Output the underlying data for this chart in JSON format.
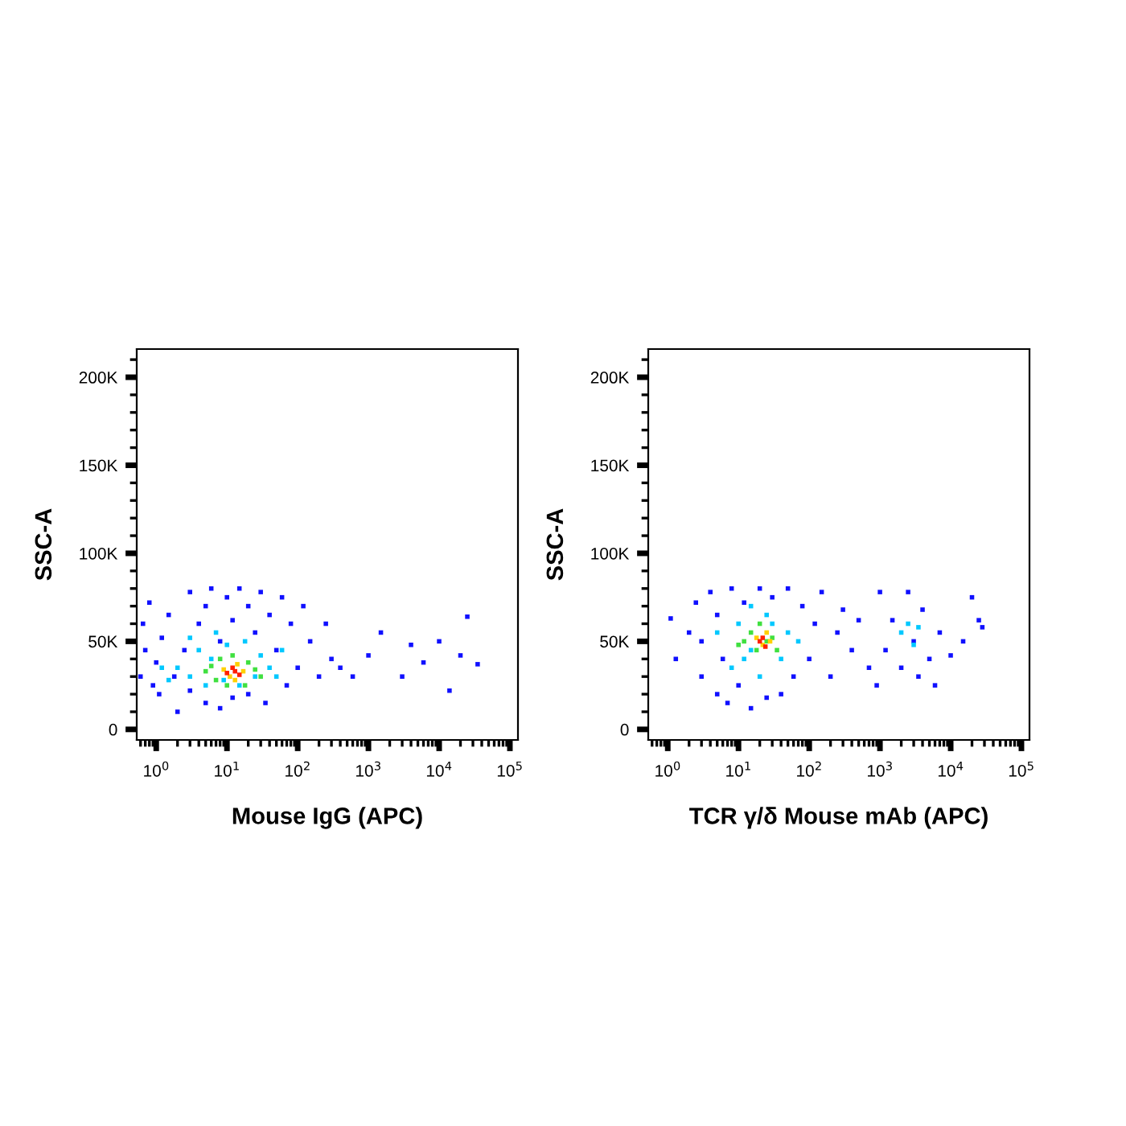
{
  "chart_data": [
    {
      "type": "scatter",
      "xlabel": "Mouse IgG (APC)",
      "ylabel": "SSC-A",
      "log": "x",
      "marker": "square",
      "grid": false,
      "legend": false,
      "xlim": [
        0.53,
        130000
      ],
      "ylim": [
        -6000,
        216000
      ],
      "xticks": [
        {
          "value": 1,
          "label": "10$^{0}$"
        },
        {
          "value": 10,
          "label": "10$^{1}$"
        },
        {
          "value": 100,
          "label": "10$^{2}$"
        },
        {
          "value": 1000,
          "label": "10$^{3}$"
        },
        {
          "value": 10000,
          "label": "10$^{4}$"
        },
        {
          "value": 100000,
          "label": "10$^{5}$"
        }
      ],
      "yticks": [
        {
          "value": 0,
          "label": "0"
        },
        {
          "value": 50000,
          "label": "50K"
        },
        {
          "value": 100000,
          "label": "100K"
        },
        {
          "value": 150000,
          "label": "150K"
        },
        {
          "value": 200000,
          "label": "200K"
        }
      ],
      "series": [
        {
          "color": "#1010ff",
          "x": [
            0.6,
            0.7,
            0.65,
            0.8,
            0.9,
            1.0,
            1.2,
            1.1,
            1.5,
            1.8,
            2,
            2.5,
            3,
            3,
            4,
            5,
            5,
            6,
            8,
            8,
            10,
            12,
            12,
            15,
            20,
            20,
            25,
            30,
            35,
            40,
            50,
            60,
            70,
            80,
            100,
            120,
            150,
            200,
            250,
            300,
            400,
            600,
            1000,
            1500,
            3000,
            4000,
            6000,
            10000,
            14000,
            20000,
            25000,
            35000
          ],
          "values": [
            30000,
            45000,
            60000,
            72000,
            25000,
            38000,
            52000,
            20000,
            65000,
            30000,
            10000,
            45000,
            78000,
            22000,
            60000,
            15000,
            70000,
            80000,
            50000,
            12000,
            75000,
            62000,
            18000,
            80000,
            70000,
            20000,
            55000,
            78000,
            15000,
            65000,
            45000,
            75000,
            25000,
            60000,
            35000,
            70000,
            50000,
            30000,
            60000,
            40000,
            35000,
            30000,
            42000,
            55000,
            30000,
            48000,
            38000,
            50000,
            22000,
            42000,
            64000,
            37000
          ]
        },
        {
          "color": "#00c8ff",
          "x": [
            2,
            3,
            4,
            5,
            6,
            7,
            9,
            10,
            15,
            18,
            25,
            30,
            40,
            50,
            1.2,
            1.5,
            3,
            60
          ],
          "values": [
            35000,
            30000,
            45000,
            25000,
            40000,
            55000,
            28000,
            48000,
            25000,
            50000,
            30000,
            42000,
            35000,
            30000,
            35000,
            28000,
            52000,
            45000
          ]
        },
        {
          "color": "#40e040",
          "x": [
            5,
            7,
            8,
            10,
            12,
            18,
            20,
            25,
            6,
            30
          ],
          "values": [
            33000,
            28000,
            40000,
            25000,
            42000,
            25000,
            38000,
            34000,
            36000,
            30000
          ]
        },
        {
          "color": "#ffd000",
          "x": [
            9,
            11,
            14,
            17,
            13
          ],
          "values": [
            34000,
            30000,
            37000,
            33000,
            28000
          ]
        },
        {
          "color": "#ff2000",
          "x": [
            10,
            12,
            15,
            13
          ],
          "values": [
            32000,
            35000,
            31000,
            33000
          ]
        }
      ]
    },
    {
      "type": "scatter",
      "xlabel": "TCR γ/δ Mouse mAb (APC)",
      "ylabel": "SSC-A",
      "log": "x",
      "marker": "square",
      "grid": false,
      "legend": false,
      "xlim": [
        0.53,
        130000
      ],
      "ylim": [
        -6000,
        216000
      ],
      "xticks": [
        {
          "value": 1,
          "label": "10$^{0}$"
        },
        {
          "value": 10,
          "label": "10$^{1}$"
        },
        {
          "value": 100,
          "label": "10$^{2}$"
        },
        {
          "value": 1000,
          "label": "10$^{3}$"
        },
        {
          "value": 10000,
          "label": "10$^{4}$"
        },
        {
          "value": 100000,
          "label": "10$^{5}$"
        }
      ],
      "yticks": [
        {
          "value": 0,
          "label": "0"
        },
        {
          "value": 50000,
          "label": "50K"
        },
        {
          "value": 100000,
          "label": "100K"
        },
        {
          "value": 150000,
          "label": "150K"
        },
        {
          "value": 200000,
          "label": "200K"
        }
      ],
      "series": [
        {
          "color": "#1010ff",
          "x": [
            1.1,
            1.3,
            2,
            2.5,
            3,
            3,
            4,
            5,
            5,
            6,
            7,
            8,
            10,
            12,
            15,
            20,
            25,
            30,
            40,
            50,
            60,
            80,
            100,
            120,
            150,
            200,
            250,
            300,
            400,
            500,
            700,
            900,
            1000,
            1200,
            1500,
            2000,
            2500,
            3000,
            3500,
            4000,
            5000,
            6000,
            7000,
            10000,
            15000,
            20000,
            25000,
            28000
          ],
          "values": [
            63000,
            40000,
            55000,
            72000,
            30000,
            50000,
            78000,
            20000,
            65000,
            40000,
            15000,
            80000,
            25000,
            72000,
            12000,
            80000,
            18000,
            75000,
            20000,
            80000,
            30000,
            70000,
            40000,
            60000,
            78000,
            30000,
            55000,
            68000,
            45000,
            62000,
            35000,
            25000,
            78000,
            45000,
            62000,
            35000,
            78000,
            50000,
            30000,
            68000,
            40000,
            25000,
            55000,
            42000,
            50000,
            75000,
            62000,
            58000
          ]
        },
        {
          "color": "#00c8ff",
          "x": [
            5,
            8,
            10,
            12,
            15,
            20,
            30,
            40,
            50,
            70,
            2000,
            2500,
            3000,
            3500,
            15,
            25
          ],
          "values": [
            55000,
            35000,
            60000,
            40000,
            70000,
            30000,
            60000,
            40000,
            55000,
            50000,
            55000,
            60000,
            48000,
            58000,
            45000,
            65000
          ]
        },
        {
          "color": "#40e040",
          "x": [
            12,
            15,
            18,
            20,
            25,
            30,
            35,
            10
          ],
          "values": [
            50000,
            55000,
            45000,
            60000,
            50000,
            52000,
            45000,
            48000
          ]
        },
        {
          "color": "#ffd000",
          "x": [
            18,
            22,
            25,
            28
          ],
          "values": [
            52000,
            48000,
            55000,
            50000
          ]
        },
        {
          "color": "#ff2000",
          "x": [
            20,
            24,
            22
          ],
          "values": [
            50000,
            47000,
            52000
          ]
        }
      ]
    }
  ]
}
